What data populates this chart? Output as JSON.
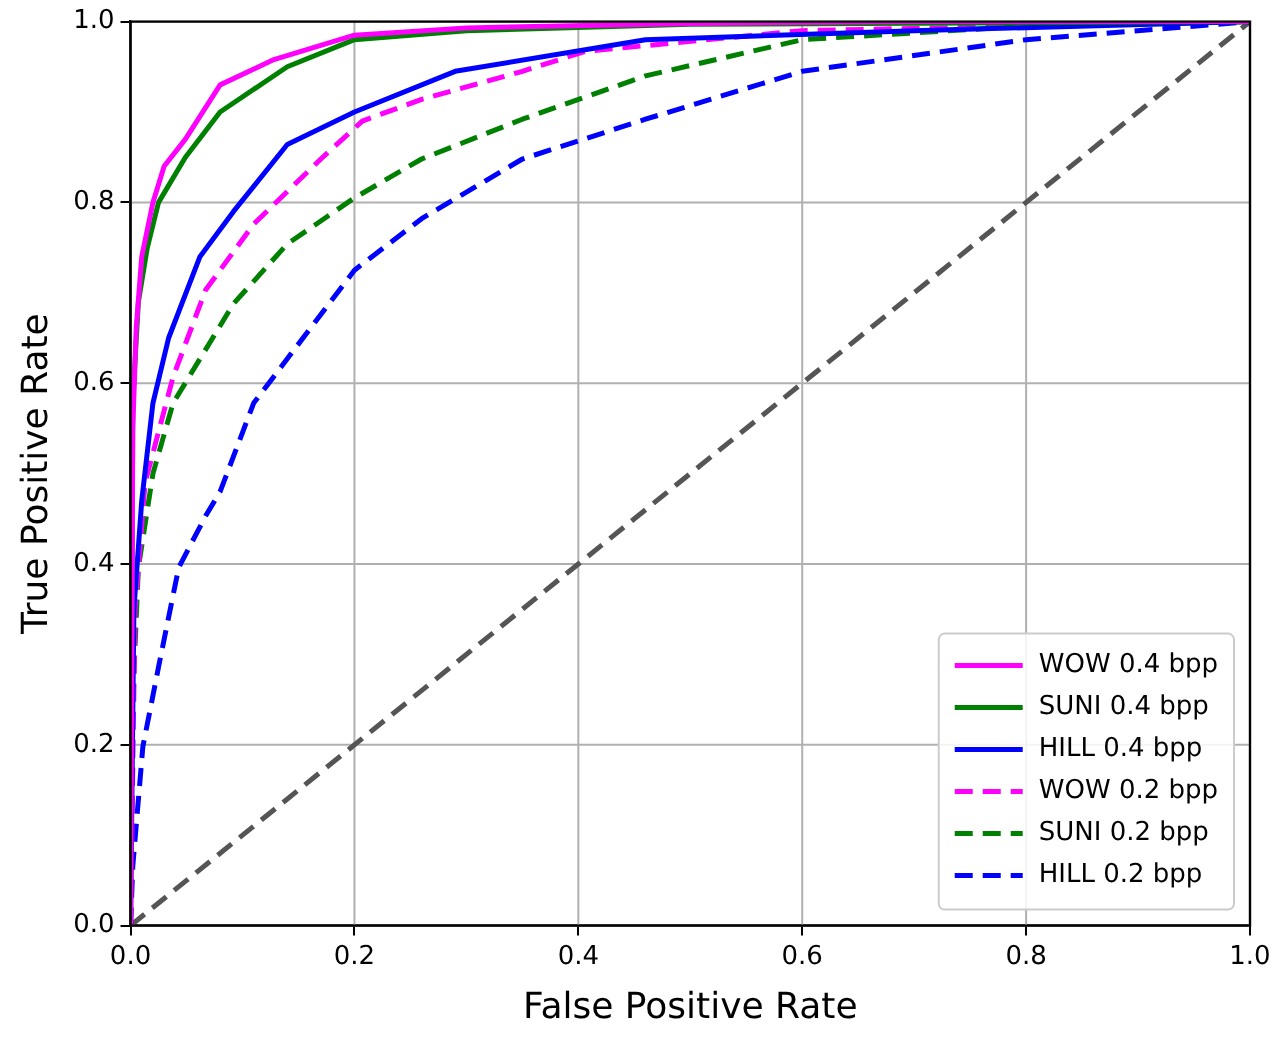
{
  "chart_data": {
    "type": "line",
    "xlabel": "False Positive Rate",
    "ylabel": "True Positive Rate",
    "xlim": [
      0,
      1
    ],
    "ylim": [
      0,
      1
    ],
    "xticks": [
      {
        "value": 0,
        "label": "0.0"
      },
      {
        "value": 0.2,
        "label": "0.2"
      },
      {
        "value": 0.4,
        "label": "0.4"
      },
      {
        "value": 0.6,
        "label": "0.6"
      },
      {
        "value": 0.8,
        "label": "0.8"
      },
      {
        "value": 1,
        "label": "1.0"
      }
    ],
    "yticks": [
      {
        "value": 0,
        "label": "0.0"
      },
      {
        "value": 0.2,
        "label": "0.2"
      },
      {
        "value": 0.4,
        "label": "0.4"
      },
      {
        "value": 0.6,
        "label": "0.6"
      },
      {
        "value": 0.8,
        "label": "0.8"
      },
      {
        "value": 1,
        "label": "1.0"
      }
    ],
    "grid": true,
    "legend": "bottom right",
    "marker": "none",
    "series": [
      {
        "name": "WOW 0.4 bpp",
        "color": "#ff00ff",
        "line_style": "solid",
        "x": [
          0,
          0.002,
          0.005,
          0.01,
          0.02,
          0.03,
          0.049,
          0.08,
          0.128,
          0.2,
          0.3,
          0.5,
          0.7,
          1
        ],
        "values": [
          0,
          0.55,
          0.66,
          0.74,
          0.8,
          0.84,
          0.87,
          0.93,
          0.958,
          0.985,
          0.993,
          0.998,
          1,
          1
        ]
      },
      {
        "name": "SUNI 0.4 bpp",
        "color": "#008000",
        "line_style": "solid",
        "x": [
          0,
          0.002,
          0.007,
          0.015,
          0.025,
          0.049,
          0.08,
          0.14,
          0.2,
          0.3,
          0.5,
          1
        ],
        "values": [
          0,
          0.58,
          0.69,
          0.75,
          0.8,
          0.85,
          0.9,
          0.95,
          0.98,
          0.99,
          0.997,
          1
        ]
      },
      {
        "name": "HILL 0.4 bpp",
        "color": "#0000ff",
        "line_style": "solid",
        "x": [
          0,
          0.003,
          0.01,
          0.02,
          0.034,
          0.062,
          0.092,
          0.14,
          0.2,
          0.29,
          0.46,
          0.7,
          1
        ],
        "values": [
          0,
          0.35,
          0.47,
          0.578,
          0.65,
          0.74,
          0.79,
          0.864,
          0.9,
          0.945,
          0.98,
          0.99,
          1
        ]
      },
      {
        "name": "WOW 0.2 bpp",
        "color": "#ff00ff",
        "line_style": "dashed",
        "x": [
          0,
          0.004,
          0.013,
          0.038,
          0.067,
          0.11,
          0.17,
          0.207,
          0.26,
          0.35,
          0.406,
          0.6,
          0.8,
          1
        ],
        "values": [
          0,
          0.35,
          0.49,
          0.607,
          0.703,
          0.776,
          0.848,
          0.89,
          0.914,
          0.945,
          0.967,
          0.99,
          0.995,
          1
        ]
      },
      {
        "name": "SUNI 0.2 bpp",
        "color": "#008000",
        "line_style": "dashed",
        "x": [
          0,
          0.002,
          0.007,
          0.02,
          0.038,
          0.092,
          0.14,
          0.2,
          0.26,
          0.35,
          0.46,
          0.6,
          0.8,
          1
        ],
        "values": [
          0,
          0.25,
          0.396,
          0.5,
          0.578,
          0.688,
          0.754,
          0.805,
          0.848,
          0.892,
          0.94,
          0.98,
          0.995,
          1
        ]
      },
      {
        "name": "HILL 0.2 bpp",
        "color": "#0000ff",
        "line_style": "dashed",
        "x": [
          0,
          0.002,
          0.011,
          0.025,
          0.043,
          0.067,
          0.08,
          0.11,
          0.2,
          0.26,
          0.35,
          0.46,
          0.6,
          0.8,
          1
        ],
        "values": [
          0,
          0.066,
          0.198,
          0.286,
          0.396,
          0.453,
          0.48,
          0.578,
          0.725,
          0.782,
          0.848,
          0.892,
          0.945,
          0.98,
          1
        ]
      },
      {
        "color": "#555555",
        "line_style": "dashed",
        "x": [
          0,
          1
        ],
        "values": [
          0,
          1
        ]
      }
    ]
  }
}
